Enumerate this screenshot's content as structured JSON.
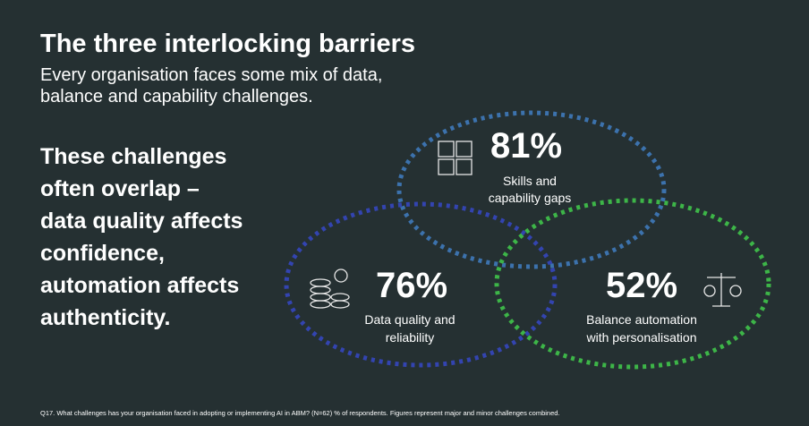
{
  "header": {
    "title": "The three interlocking barriers",
    "subtitle": [
      "Every organisation faces some mix of data,",
      "balance and capability challenges."
    ]
  },
  "body": [
    "These challenges",
    "often overlap –",
    "data quality affects",
    "confidence,",
    "automation affects",
    "authenticity."
  ],
  "circles": [
    {
      "value_label": "81%",
      "label": [
        "Skills and",
        "capability gaps"
      ]
    },
    {
      "value_label": "76%",
      "label": [
        "Data quality and",
        "reliability"
      ]
    },
    {
      "value_label": "52%",
      "label": [
        "Balance automation",
        "with personalisation"
      ]
    }
  ],
  "footnote": "Q17. What challenges has your organisation faced in adopting or implementing AI in ABM? (N=62) % of respondents. Figures represent major and minor challenges combined."
}
